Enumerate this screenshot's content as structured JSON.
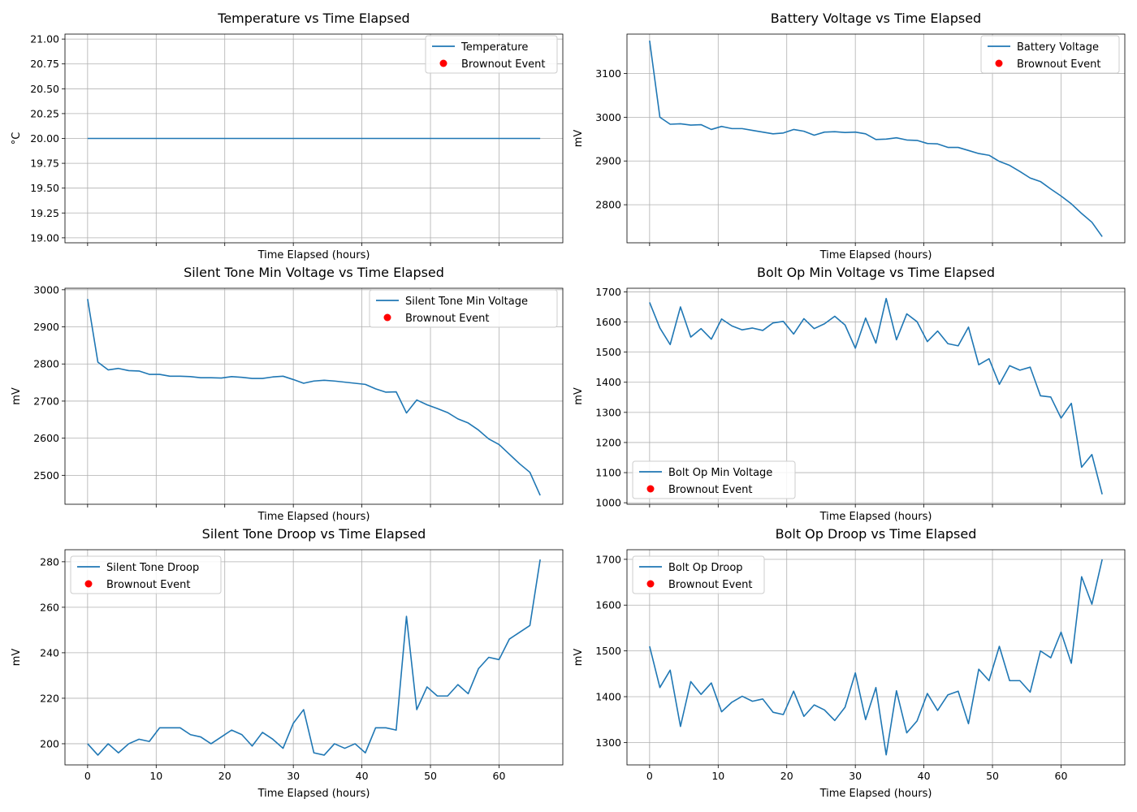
{
  "chart_data": [
    {
      "type": "line",
      "title": "Temperature vs Time Elapsed",
      "xlabel": "Time Elapsed (hours)",
      "ylabel": "°C",
      "xlim": [
        -3.3,
        69.3
      ],
      "ylim": [
        18.95,
        21.05
      ],
      "xticks": [
        0,
        10,
        20,
        30,
        40,
        50,
        60
      ],
      "yticks": [
        19.0,
        19.25,
        19.5,
        19.75,
        20.0,
        20.25,
        20.5,
        20.75,
        21.0
      ],
      "ytick_labels": [
        "19.00",
        "19.25",
        "19.50",
        "19.75",
        "20.00",
        "20.25",
        "20.50",
        "20.75",
        "21.00"
      ],
      "show_xtick_labels": false,
      "grid": true,
      "legend": "top-right",
      "series": [
        {
          "name": "Temperature",
          "x": [
            0,
            66
          ],
          "y": [
            20.0,
            20.0
          ]
        }
      ],
      "events_label": "Brownout Event",
      "events": []
    },
    {
      "type": "line",
      "title": "Battery Voltage vs Time Elapsed",
      "xlabel": "Time Elapsed (hours)",
      "ylabel": "mV",
      "xlim": [
        -3.3,
        69.3
      ],
      "ylim": [
        2713,
        3190
      ],
      "xticks": [
        0,
        10,
        20,
        30,
        40,
        50,
        60
      ],
      "yticks": [
        2800,
        2900,
        3000,
        3100
      ],
      "ytick_labels": [
        "2800",
        "2900",
        "3000",
        "3100"
      ],
      "show_xtick_labels": false,
      "grid": true,
      "legend": "top-right",
      "series": [
        {
          "name": "Battery Voltage",
          "x": [
            0,
            1.5,
            3,
            4.5,
            6,
            7.5,
            9,
            10.5,
            12,
            13.5,
            15,
            16.5,
            18,
            19.5,
            21,
            22.5,
            24,
            25.5,
            27,
            28.5,
            30,
            31.5,
            33,
            34.5,
            36,
            37.5,
            39,
            40.5,
            42,
            43.5,
            45,
            46.5,
            48,
            49.5,
            51,
            52.5,
            54,
            55.5,
            57,
            58.5,
            60,
            61.5,
            63,
            64.5,
            66
          ],
          "y": [
            3175,
            3000,
            2984,
            2985,
            2982,
            2983,
            2972,
            2979,
            2974,
            2974,
            2970,
            2966,
            2962,
            2964,
            2972,
            2968,
            2959,
            2966,
            2967,
            2965,
            2966,
            2962,
            2949,
            2950,
            2953,
            2948,
            2947,
            2940,
            2939,
            2931,
            2931,
            2924,
            2917,
            2913,
            2899,
            2890,
            2876,
            2861,
            2853,
            2836,
            2820,
            2802,
            2780,
            2760,
            2727
          ]
        }
      ],
      "events_label": "Brownout Event",
      "events": []
    },
    {
      "type": "line",
      "title": "Silent Tone Min Voltage vs Time Elapsed",
      "xlabel": "Time Elapsed (hours)",
      "ylabel": "mV",
      "xlim": [
        -3.3,
        69.3
      ],
      "ylim": [
        2422,
        3004
      ],
      "xticks": [
        0,
        10,
        20,
        30,
        40,
        50,
        60
      ],
      "yticks": [
        2500,
        2600,
        2700,
        2800,
        2900,
        3000
      ],
      "ytick_labels": [
        "2500",
        "2600",
        "2700",
        "2800",
        "2900",
        "3000"
      ],
      "show_xtick_labels": false,
      "grid": true,
      "legend": "top-right",
      "series": [
        {
          "name": "Silent Tone Min Voltage",
          "x": [
            0,
            1.5,
            3,
            4.5,
            6,
            7.5,
            9,
            10.5,
            12,
            13.5,
            15,
            16.5,
            18,
            19.5,
            21,
            22.5,
            24,
            25.5,
            27,
            28.5,
            30,
            31.5,
            33,
            34.5,
            36,
            37.5,
            39,
            40.5,
            42,
            43.5,
            45,
            46.5,
            48,
            49.5,
            51,
            52.5,
            54,
            55.5,
            57,
            58.5,
            60,
            61.5,
            63,
            64.5,
            66
          ],
          "y": [
            2975,
            2805,
            2784,
            2788,
            2782,
            2781,
            2772,
            2772,
            2767,
            2767,
            2766,
            2763,
            2763,
            2762,
            2766,
            2764,
            2761,
            2761,
            2765,
            2767,
            2758,
            2748,
            2754,
            2756,
            2754,
            2751,
            2748,
            2745,
            2733,
            2724,
            2725,
            2668,
            2703,
            2690,
            2680,
            2669,
            2652,
            2641,
            2622,
            2598,
            2583,
            2557,
            2531,
            2508,
            2446
          ]
        }
      ],
      "events_label": "Brownout Event",
      "events": []
    },
    {
      "type": "line",
      "title": "Bolt Op Min Voltage vs Time Elapsed",
      "xlabel": "Time Elapsed (hours)",
      "ylabel": "mV",
      "xlim": [
        -3.3,
        69.3
      ],
      "ylim": [
        995,
        1712
      ],
      "xticks": [
        0,
        10,
        20,
        30,
        40,
        50,
        60
      ],
      "yticks": [
        1000,
        1100,
        1200,
        1300,
        1400,
        1500,
        1600,
        1700
      ],
      "ytick_labels": [
        "1000",
        "1100",
        "1200",
        "1300",
        "1400",
        "1500",
        "1600",
        "1700"
      ],
      "show_xtick_labels": false,
      "grid": true,
      "legend": "bottom-left",
      "series": [
        {
          "name": "Bolt Op Min Voltage",
          "x": [
            0,
            1.5,
            3,
            4.5,
            6,
            7.5,
            9,
            10.5,
            12,
            13.5,
            15,
            16.5,
            18,
            19.5,
            21,
            22.5,
            24,
            25.5,
            27,
            28.5,
            30,
            31.5,
            33,
            34.5,
            36,
            37.5,
            39,
            40.5,
            42,
            43.5,
            45,
            46.5,
            48,
            49.5,
            51,
            52.5,
            54,
            55.5,
            57,
            58.5,
            60,
            61.5,
            63,
            64.5,
            66
          ],
          "y": [
            1665,
            1580,
            1525,
            1650,
            1550,
            1578,
            1543,
            1610,
            1587,
            1574,
            1580,
            1572,
            1597,
            1602,
            1560,
            1611,
            1578,
            1594,
            1619,
            1590,
            1513,
            1613,
            1530,
            1678,
            1541,
            1627,
            1601,
            1535,
            1570,
            1528,
            1521,
            1583,
            1458,
            1478,
            1393,
            1455,
            1440,
            1450,
            1355,
            1351,
            1281,
            1330,
            1118,
            1160,
            1028
          ]
        }
      ],
      "events_label": "Brownout Event",
      "events": []
    },
    {
      "type": "line",
      "title": "Silent Tone Droop vs Time Elapsed",
      "xlabel": "Time Elapsed (hours)",
      "ylabel": "mV",
      "xlim": [
        -3.3,
        69.3
      ],
      "ylim": [
        190.7,
        285.3
      ],
      "xticks": [
        0,
        10,
        20,
        30,
        40,
        50,
        60
      ],
      "yticks": [
        200,
        220,
        240,
        260,
        280
      ],
      "ytick_labels": [
        "200",
        "220",
        "240",
        "260",
        "280"
      ],
      "show_xtick_labels": true,
      "grid": true,
      "legend": "top-left",
      "series": [
        {
          "name": "Silent Tone Droop",
          "x": [
            0,
            1.5,
            3,
            4.5,
            6,
            7.5,
            9,
            10.5,
            12,
            13.5,
            15,
            16.5,
            18,
            19.5,
            21,
            22.5,
            24,
            25.5,
            27,
            28.5,
            30,
            31.5,
            33,
            34.5,
            36,
            37.5,
            39,
            40.5,
            42,
            43.5,
            45,
            46.5,
            48,
            49.5,
            51,
            52.5,
            54,
            55.5,
            57,
            58.5,
            60,
            61.5,
            63,
            64.5,
            66
          ],
          "y": [
            200,
            195,
            200,
            196,
            200,
            202,
            201,
            207,
            207,
            207,
            204,
            203,
            200,
            203,
            206,
            204,
            199,
            205,
            202,
            198,
            209,
            215,
            196,
            195,
            200,
            198,
            200,
            196,
            207,
            207,
            206,
            256,
            215,
            225,
            221,
            221,
            226,
            222,
            233,
            238,
            237,
            246,
            249,
            252,
            281
          ]
        }
      ],
      "events_label": "Brownout Event",
      "events": []
    },
    {
      "type": "line",
      "title": "Bolt Op Droop vs Time Elapsed",
      "xlabel": "Time Elapsed (hours)",
      "ylabel": "mV",
      "xlim": [
        -3.3,
        69.3
      ],
      "ylim": [
        1251,
        1721
      ],
      "xticks": [
        0,
        10,
        20,
        30,
        40,
        50,
        60
      ],
      "yticks": [
        1300,
        1400,
        1500,
        1600,
        1700
      ],
      "ytick_labels": [
        "1300",
        "1400",
        "1500",
        "1600",
        "1700"
      ],
      "show_xtick_labels": true,
      "grid": true,
      "legend": "top-left",
      "series": [
        {
          "name": "Bolt Op Droop",
          "x": [
            0,
            1.5,
            3,
            4.5,
            6,
            7.5,
            9,
            10.5,
            12,
            13.5,
            15,
            16.5,
            18,
            19.5,
            21,
            22.5,
            24,
            25.5,
            27,
            28.5,
            30,
            31.5,
            33,
            34.5,
            36,
            37.5,
            39,
            40.5,
            42,
            43.5,
            45,
            46.5,
            48,
            49.5,
            51,
            52.5,
            54,
            55.5,
            57,
            58.5,
            60,
            61.5,
            63,
            64.5,
            66
          ],
          "y": [
            1510,
            1420,
            1458,
            1335,
            1433,
            1405,
            1430,
            1367,
            1388,
            1401,
            1390,
            1395,
            1366,
            1361,
            1412,
            1357,
            1382,
            1371,
            1348,
            1377,
            1452,
            1350,
            1420,
            1273,
            1413,
            1321,
            1347,
            1407,
            1370,
            1404,
            1412,
            1341,
            1460,
            1435,
            1510,
            1435,
            1435,
            1410,
            1500,
            1485,
            1541,
            1473,
            1662,
            1602,
            1700
          ]
        }
      ],
      "events_label": "Brownout Event",
      "events": []
    }
  ],
  "colors": {
    "line": "#1f77b4",
    "event": "#ff0000",
    "grid": "#b0b0b0",
    "legend_border": "#cccccc"
  }
}
